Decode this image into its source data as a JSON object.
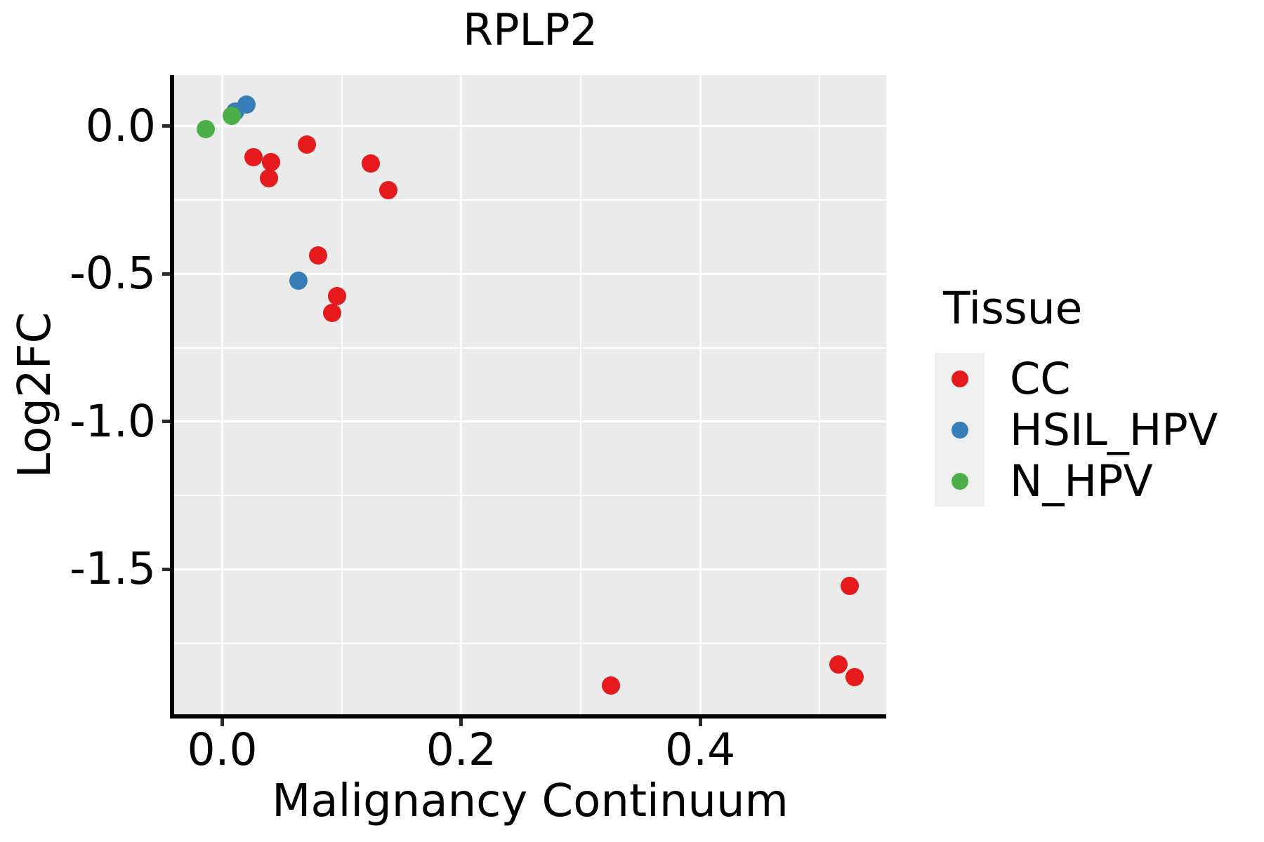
{
  "figure": {
    "background": "#ffffff"
  },
  "title": "RPLP2",
  "axes": {
    "x_label": "Malignancy Continuum",
    "y_label": "Log2FC",
    "x_tick_labels": [
      "0.0",
      "0.2",
      "0.4"
    ],
    "y_tick_labels": [
      "0.0",
      "-0.5",
      "-1.0",
      "-1.5"
    ]
  },
  "legend": {
    "title": "Tissue",
    "position": "right",
    "items": [
      {
        "label": "CC",
        "color": "#E41A1C"
      },
      {
        "label": "HSIL_HPV",
        "color": "#377EB8"
      },
      {
        "label": "N_HPV",
        "color": "#4DAF4A"
      }
    ]
  },
  "chart_data": {
    "type": "scatter",
    "title": "RPLP2",
    "xlabel": "Malignancy Continuum",
    "ylabel": "Log2FC",
    "xlim": [
      -0.0403,
      0.5557
    ],
    "ylim": [
      -1.9905,
      0.1731
    ],
    "x_ticks": [
      0.0,
      0.2,
      0.4
    ],
    "y_ticks": [
      0.0,
      -0.5,
      -1.0,
      -1.5
    ],
    "x_minor_gridlines": [
      0.1,
      0.3,
      0.5
    ],
    "y_minor_gridlines": [
      -0.25,
      -0.75,
      -1.25,
      -1.75
    ],
    "grid": true,
    "panel_background": "#EBEBEB",
    "gridline_color": "#FFFFFF",
    "legend_position": "right",
    "series": [
      {
        "name": "CC",
        "color": "#E41A1C",
        "points": [
          [
            0.026,
            -0.104
          ],
          [
            0.041,
            -0.121
          ],
          [
            0.039,
            -0.176
          ],
          [
            0.071,
            -0.062
          ],
          [
            0.124,
            -0.126
          ],
          [
            0.139,
            -0.217
          ],
          [
            0.08,
            -0.438
          ],
          [
            0.096,
            -0.574
          ],
          [
            0.092,
            -0.633
          ],
          [
            0.325,
            -1.894
          ],
          [
            0.525,
            -1.556
          ],
          [
            0.516,
            -1.823
          ],
          [
            0.529,
            -1.865
          ]
        ]
      },
      {
        "name": "HSIL_HPV",
        "color": "#377EB8",
        "points": [
          [
            0.011,
            0.05
          ],
          [
            0.02,
            0.073
          ],
          [
            0.064,
            -0.523
          ]
        ]
      },
      {
        "name": "N_HPV",
        "color": "#4DAF4A",
        "points": [
          [
            -0.014,
            -0.009
          ],
          [
            0.008,
            0.036
          ]
        ]
      }
    ]
  }
}
